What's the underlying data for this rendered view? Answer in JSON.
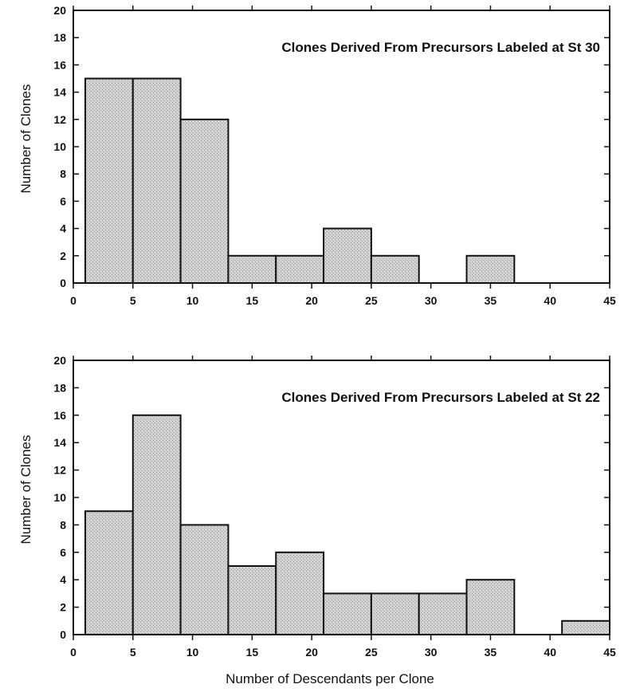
{
  "figure": {
    "xlabel": "Number of Descendants per Clone"
  },
  "chart_data": [
    {
      "type": "bar",
      "title": "Clones Derived From Precursors Labeled at St 30",
      "xlabel": "",
      "ylabel": "Number of Clones",
      "xlim": [
        0,
        45
      ],
      "ylim": [
        0,
        20
      ],
      "xticks": [
        0,
        5,
        10,
        15,
        20,
        25,
        30,
        35,
        40,
        45
      ],
      "yticks": [
        0,
        2,
        4,
        6,
        8,
        10,
        12,
        14,
        16,
        18,
        20
      ],
      "bin_width": 4,
      "bins": [
        {
          "start": 1,
          "end": 5,
          "count": 15
        },
        {
          "start": 5,
          "end": 9,
          "count": 15
        },
        {
          "start": 9,
          "end": 13,
          "count": 12
        },
        {
          "start": 13,
          "end": 17,
          "count": 2
        },
        {
          "start": 17,
          "end": 21,
          "count": 2
        },
        {
          "start": 21,
          "end": 25,
          "count": 4
        },
        {
          "start": 25,
          "end": 29,
          "count": 2
        },
        {
          "start": 29,
          "end": 33,
          "count": 0
        },
        {
          "start": 33,
          "end": 37,
          "count": 2
        },
        {
          "start": 37,
          "end": 41,
          "count": 0
        },
        {
          "start": 41,
          "end": 45,
          "count": 0
        }
      ],
      "grid": false
    },
    {
      "type": "bar",
      "title": "Clones Derived From Precursors Labeled at St 22",
      "xlabel": "Number of Descendants per Clone",
      "ylabel": "Number of Clones",
      "xlim": [
        0,
        45
      ],
      "ylim": [
        0,
        20
      ],
      "xticks": [
        0,
        5,
        10,
        15,
        20,
        25,
        30,
        35,
        40,
        45
      ],
      "yticks": [
        0,
        2,
        4,
        6,
        8,
        10,
        12,
        14,
        16,
        18,
        20
      ],
      "bin_width": 4,
      "bins": [
        {
          "start": 1,
          "end": 5,
          "count": 9
        },
        {
          "start": 5,
          "end": 9,
          "count": 16
        },
        {
          "start": 9,
          "end": 13,
          "count": 8
        },
        {
          "start": 13,
          "end": 17,
          "count": 5
        },
        {
          "start": 17,
          "end": 21,
          "count": 6
        },
        {
          "start": 21,
          "end": 25,
          "count": 3
        },
        {
          "start": 25,
          "end": 29,
          "count": 3
        },
        {
          "start": 29,
          "end": 33,
          "count": 3
        },
        {
          "start": 33,
          "end": 37,
          "count": 4
        },
        {
          "start": 37,
          "end": 41,
          "count": 0
        },
        {
          "start": 41,
          "end": 45,
          "count": 1
        }
      ],
      "grid": false
    }
  ]
}
